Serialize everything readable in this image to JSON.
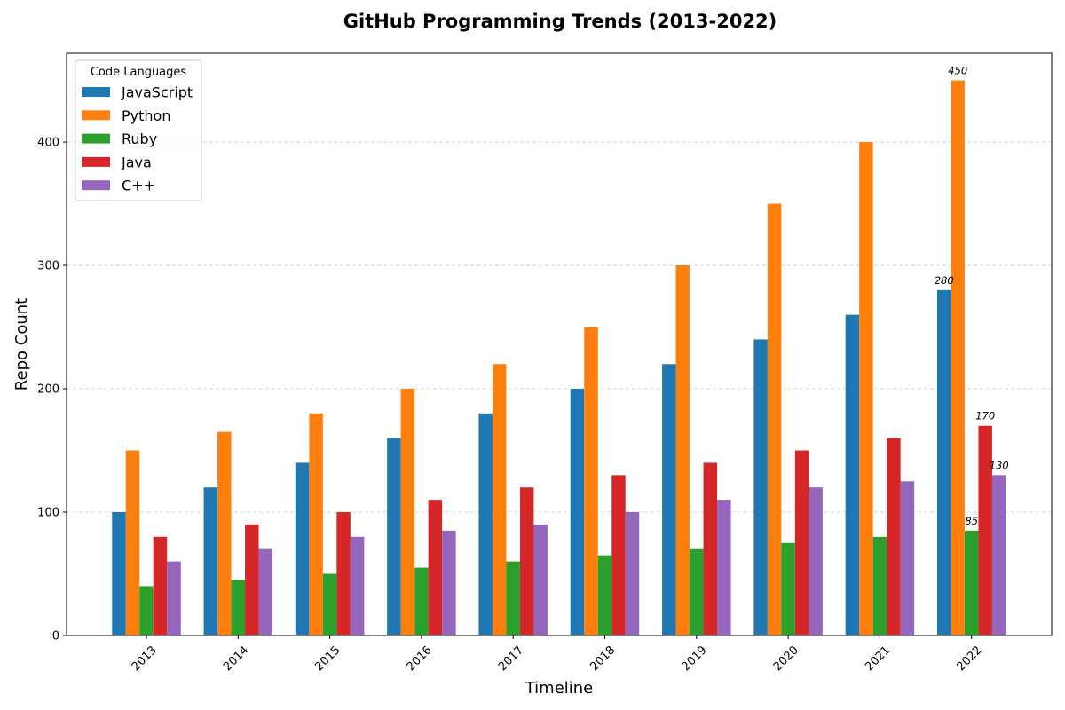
{
  "chart_data": {
    "type": "bar",
    "title": "GitHub Programming Trends (2013-2022)",
    "xlabel": "Timeline",
    "ylabel": "Repo Count",
    "categories": [
      "2013",
      "2014",
      "2015",
      "2016",
      "2017",
      "2018",
      "2019",
      "2020",
      "2021",
      "2022"
    ],
    "series": [
      {
        "name": "JavaScript",
        "color": "#1f77b4",
        "values": [
          100,
          120,
          140,
          160,
          180,
          200,
          220,
          240,
          260,
          280
        ]
      },
      {
        "name": "Python",
        "color": "#ff7f0e",
        "values": [
          150,
          165,
          180,
          200,
          220,
          250,
          300,
          350,
          400,
          450
        ]
      },
      {
        "name": "Ruby",
        "color": "#2ca02c",
        "values": [
          40,
          45,
          50,
          55,
          60,
          65,
          70,
          75,
          80,
          85
        ]
      },
      {
        "name": "Java",
        "color": "#d62728",
        "values": [
          80,
          90,
          100,
          110,
          120,
          130,
          140,
          150,
          160,
          170
        ]
      },
      {
        "name": "C++",
        "color": "#9467bd",
        "values": [
          60,
          70,
          80,
          85,
          90,
          100,
          110,
          120,
          125,
          130
        ]
      }
    ],
    "ylim": [
      0,
      472
    ],
    "yticks": [
      0,
      100,
      200,
      300,
      400
    ],
    "grid": "y-dashed",
    "legend": {
      "title": "Code Languages",
      "placement": "top-left"
    },
    "annotations": [
      {
        "category": "2022",
        "series": "JavaScript",
        "text": "280"
      },
      {
        "category": "2022",
        "series": "Python",
        "text": "450"
      },
      {
        "category": "2022",
        "series": "Ruby",
        "text": "85"
      },
      {
        "category": "2022",
        "series": "Java",
        "text": "170"
      },
      {
        "category": "2022",
        "series": "C++",
        "text": "130"
      }
    ]
  }
}
